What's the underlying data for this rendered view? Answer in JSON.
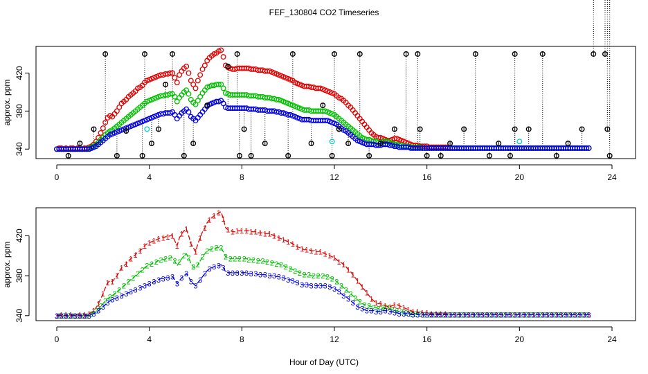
{
  "title": "FEF_130804  CO2 Timeseries",
  "xlabel": "Hour of Day (UTC)",
  "colors": {
    "c1": "#e00000",
    "c2": "#00c000",
    "c3": "#0000e0",
    "outlier": "#000000",
    "cyan": "#00d0d0"
  },
  "chart_data": [
    {
      "type": "scatter",
      "title": "FEF_130804  CO2 Timeseries",
      "ylabel": "approx. ppm",
      "xlim": [
        0,
        24
      ],
      "ylim": [
        330,
        448
      ],
      "xticks": [
        0,
        4,
        8,
        12,
        16,
        20,
        24
      ],
      "yticks": [
        340,
        380,
        420
      ],
      "x": [
        0,
        0.1,
        0.2,
        0.3,
        0.4,
        0.5,
        0.6,
        0.7,
        0.8,
        0.9,
        1,
        1.1,
        1.2,
        1.3,
        1.4,
        1.5,
        1.6,
        1.7,
        1.8,
        1.9,
        2,
        2.1,
        2.2,
        2.3,
        2.4,
        2.5,
        2.6,
        2.7,
        2.8,
        2.9,
        3,
        3.1,
        3.2,
        3.3,
        3.4,
        3.5,
        3.6,
        3.7,
        3.8,
        3.9,
        4,
        4.1,
        4.2,
        4.3,
        4.4,
        4.5,
        4.6,
        4.7,
        4.8,
        4.9,
        5,
        5.1,
        5.2,
        5.3,
        5.4,
        5.5,
        5.6,
        5.7,
        5.8,
        5.9,
        6,
        6.1,
        6.2,
        6.3,
        6.4,
        6.5,
        6.6,
        6.7,
        6.8,
        6.9,
        7,
        7.1,
        7.2,
        7.3,
        7.4,
        7.5,
        7.6,
        7.7,
        7.8,
        7.9,
        8,
        8.1,
        8.2,
        8.3,
        8.4,
        8.5,
        8.6,
        8.7,
        8.8,
        8.9,
        9,
        9.1,
        9.2,
        9.3,
        9.4,
        9.5,
        9.6,
        9.7,
        9.8,
        9.9,
        10,
        10.1,
        10.2,
        10.3,
        10.4,
        10.5,
        10.6,
        10.7,
        10.8,
        10.9,
        11,
        11.1,
        11.2,
        11.3,
        11.4,
        11.5,
        11.6,
        11.7,
        11.8,
        11.9,
        12,
        12.1,
        12.2,
        12.3,
        12.4,
        12.5,
        12.6,
        12.7,
        12.8,
        12.9,
        13,
        13.1,
        13.2,
        13.3,
        13.4,
        13.5,
        13.6,
        13.7,
        13.8,
        13.9,
        14,
        14.1,
        14.2,
        14.3,
        14.4,
        14.5,
        14.6,
        14.7,
        14.8,
        14.9,
        15,
        15.1,
        15.2,
        15.3,
        15.4,
        15.5,
        15.6,
        15.7,
        15.8,
        15.9,
        16,
        16.1,
        16.2,
        16.3,
        16.4,
        16.5,
        16.6,
        16.7,
        16.8,
        16.9,
        17,
        17.1,
        17.2,
        17.3,
        17.4,
        17.5,
        17.6,
        17.7,
        17.8,
        17.9,
        18,
        18.1,
        18.2,
        18.3,
        18.4,
        18.5,
        18.6,
        18.7,
        18.8,
        18.9,
        19,
        19.1,
        19.2,
        19.3,
        19.4,
        19.5,
        19.6,
        19.7,
        19.8,
        19.9,
        20,
        20.1,
        20.2,
        20.3,
        20.4,
        20.5,
        20.6,
        20.7,
        20.8,
        20.9,
        21,
        21.1,
        21.2,
        21.3,
        21.4,
        21.5,
        21.6,
        21.7,
        21.8,
        21.9,
        22,
        22.1,
        22.2,
        22.3,
        22.4,
        22.5,
        22.6,
        22.7,
        22.8,
        22.9,
        23,
        23.1,
        23.2,
        23.3,
        23.4,
        23.5,
        23.6,
        23.7
      ],
      "series": [
        {
          "name": "1",
          "color": "#e00000",
          "values": [
            340,
            341,
            341,
            340,
            341,
            340,
            341,
            341,
            340,
            341,
            341,
            340,
            341,
            341,
            342,
            343,
            345,
            348,
            352,
            357,
            362,
            368,
            373,
            375,
            374,
            377,
            380,
            384,
            388,
            390,
            392,
            395,
            397,
            399,
            401,
            404,
            405,
            407,
            410,
            412,
            413,
            414,
            415,
            416,
            417,
            418,
            418,
            419,
            419,
            420,
            420,
            415,
            410,
            418,
            422,
            425,
            427,
            420,
            412,
            408,
            404,
            412,
            418,
            424,
            428,
            433,
            436,
            438,
            440,
            441,
            443,
            444,
            437,
            428,
            426,
            425,
            424,
            424,
            425,
            425,
            425,
            425,
            425,
            425,
            424,
            424,
            424,
            423,
            423,
            423,
            422,
            422,
            422,
            421,
            420,
            419,
            418,
            417,
            416,
            415,
            414,
            413,
            412,
            410,
            409,
            408,
            407,
            406,
            406,
            406,
            405,
            405,
            404,
            404,
            404,
            403,
            402,
            401,
            400,
            399,
            398,
            396,
            394,
            393,
            391,
            389,
            386,
            384,
            381,
            378,
            375,
            372,
            369,
            366,
            363,
            360,
            357,
            355,
            353,
            352,
            352,
            351,
            350,
            349,
            349,
            350,
            351,
            351,
            350,
            349,
            348,
            347,
            346,
            345,
            344,
            344,
            344,
            343,
            343,
            343,
            343,
            342,
            342,
            342,
            342,
            342,
            342,
            342,
            342,
            342,
            341,
            341,
            341,
            341,
            341,
            341,
            341,
            341,
            341,
            341,
            341,
            341,
            341,
            341,
            341,
            341,
            341,
            341,
            341,
            341,
            341,
            341,
            341,
            341,
            341,
            341,
            341,
            341,
            341,
            341,
            341,
            341,
            341,
            341,
            341,
            341,
            341,
            341,
            341,
            341,
            341,
            341,
            341,
            341,
            341,
            341,
            341,
            341,
            341,
            341,
            341,
            341,
            341,
            341,
            341,
            341,
            341,
            341,
            341,
            341,
            341
          ]
        },
        {
          "name": "2",
          "color": "#00c000",
          "values": [
            340,
            340,
            340,
            340,
            340,
            340,
            340,
            340,
            340,
            340,
            340,
            340,
            340,
            340,
            341,
            342,
            343,
            345,
            347,
            350,
            352,
            355,
            357,
            359,
            360,
            362,
            364,
            366,
            368,
            370,
            372,
            374,
            376,
            378,
            380,
            382,
            384,
            386,
            388,
            390,
            391,
            392,
            393,
            394,
            395,
            396,
            396,
            397,
            397,
            398,
            398,
            395,
            390,
            394,
            397,
            400,
            402,
            398,
            392,
            389,
            387,
            391,
            395,
            399,
            402,
            405,
            406,
            407,
            407,
            408,
            408,
            408,
            404,
            399,
            398,
            397,
            397,
            397,
            397,
            397,
            397,
            397,
            397,
            396,
            396,
            396,
            396,
            395,
            395,
            395,
            394,
            394,
            394,
            393,
            393,
            392,
            392,
            391,
            390,
            389,
            388,
            387,
            386,
            385,
            384,
            383,
            382,
            381,
            381,
            381,
            380,
            380,
            380,
            380,
            380,
            380,
            380,
            379,
            378,
            377,
            376,
            374,
            372,
            370,
            368,
            366,
            364,
            362,
            360,
            358,
            356,
            354,
            352,
            351,
            350,
            350,
            349,
            348,
            348,
            347,
            347,
            348,
            348,
            348,
            347,
            346,
            345,
            345,
            344,
            344,
            343,
            343,
            343,
            342,
            342,
            342,
            342,
            342,
            341,
            341,
            341,
            341,
            341,
            341,
            341,
            341,
            341,
            341,
            341,
            341,
            341,
            341,
            341,
            341,
            341,
            341,
            341,
            341,
            341,
            341,
            341,
            341,
            341,
            341,
            341,
            341,
            341,
            341,
            341,
            341,
            341,
            341,
            341,
            341,
            341,
            341,
            341,
            341,
            341,
            341,
            341,
            341,
            341,
            341,
            341,
            341,
            341,
            341,
            341,
            341,
            341,
            341,
            341,
            341,
            341,
            341,
            341,
            341,
            341,
            341,
            341,
            341,
            341,
            341,
            341,
            341,
            341,
            341,
            341,
            341,
            341
          ]
        },
        {
          "name": "3",
          "color": "#0000e0",
          "values": [
            340,
            340,
            340,
            340,
            340,
            340,
            340,
            340,
            340,
            340,
            340,
            340,
            340,
            340,
            340,
            341,
            342,
            343,
            345,
            347,
            349,
            351,
            353,
            355,
            356,
            357,
            358,
            359,
            360,
            361,
            362,
            363,
            364,
            365,
            366,
            367,
            368,
            369,
            370,
            371,
            372,
            373,
            374,
            375,
            376,
            377,
            377,
            378,
            378,
            378,
            379,
            376,
            372,
            375,
            378,
            380,
            382,
            379,
            374,
            372,
            370,
            373,
            376,
            379,
            382,
            385,
            387,
            388,
            389,
            390,
            390,
            391,
            388,
            384,
            383,
            383,
            383,
            383,
            383,
            383,
            383,
            383,
            383,
            382,
            382,
            382,
            382,
            381,
            381,
            381,
            381,
            380,
            380,
            380,
            380,
            379,
            379,
            378,
            378,
            377,
            376,
            376,
            375,
            374,
            373,
            372,
            371,
            371,
            371,
            371,
            370,
            370,
            370,
            370,
            370,
            370,
            370,
            370,
            369,
            368,
            367,
            366,
            364,
            362,
            360,
            359,
            357,
            355,
            353,
            351,
            349,
            348,
            347,
            346,
            345,
            345,
            345,
            345,
            344,
            344,
            344,
            345,
            345,
            345,
            344,
            344,
            343,
            343,
            342,
            342,
            342,
            342,
            342,
            341,
            341,
            341,
            341,
            341,
            341,
            341,
            341,
            341,
            341,
            341,
            341,
            341,
            341,
            341,
            341,
            341,
            341,
            341,
            341,
            341,
            341,
            341,
            341,
            341,
            341,
            341,
            341,
            341,
            341,
            341,
            341,
            341,
            341,
            341,
            341,
            341,
            341,
            341,
            341,
            341,
            341,
            341,
            341,
            341,
            341,
            341,
            341,
            341,
            341,
            341,
            341,
            341,
            341,
            341,
            341,
            341,
            341,
            341,
            341,
            341,
            341,
            341,
            341,
            341,
            341,
            341,
            341,
            341,
            341,
            341,
            341,
            341,
            341,
            341,
            341,
            341,
            341
          ]
        }
      ],
      "outlier_points": [
        {
          "x": 0.5,
          "y": 333
        },
        {
          "x": 1.0,
          "y": 346
        },
        {
          "x": 1.6,
          "y": 361
        },
        {
          "x": 2.1,
          "y": 440
        },
        {
          "x": 2.6,
          "y": 333
        },
        {
          "x": 3.0,
          "y": 359
        },
        {
          "x": 3.7,
          "y": 333
        },
        {
          "x": 3.8,
          "y": 440
        },
        {
          "x": 4.1,
          "y": 346
        },
        {
          "x": 4.4,
          "y": 361
        },
        {
          "x": 4.7,
          "y": 408
        },
        {
          "x": 5.0,
          "y": 440
        },
        {
          "x": 5.5,
          "y": 333
        },
        {
          "x": 5.9,
          "y": 346
        },
        {
          "x": 6.5,
          "y": 386
        },
        {
          "x": 7.4,
          "y": 427
        },
        {
          "x": 7.8,
          "y": 440
        },
        {
          "x": 7.9,
          "y": 333
        },
        {
          "x": 8.1,
          "y": 361
        },
        {
          "x": 8.4,
          "y": 333
        },
        {
          "x": 9.0,
          "y": 346
        },
        {
          "x": 10.0,
          "y": 333
        },
        {
          "x": 10.2,
          "y": 440
        },
        {
          "x": 11.0,
          "y": 346
        },
        {
          "x": 11.5,
          "y": 386
        },
        {
          "x": 11.9,
          "y": 333
        },
        {
          "x": 12.0,
          "y": 440
        },
        {
          "x": 12.2,
          "y": 361
        },
        {
          "x": 12.6,
          "y": 346
        },
        {
          "x": 13.1,
          "y": 440
        },
        {
          "x": 13.5,
          "y": 333
        },
        {
          "x": 14.0,
          "y": 346
        },
        {
          "x": 14.6,
          "y": 361
        },
        {
          "x": 15.1,
          "y": 440
        },
        {
          "x": 15.6,
          "y": 440
        },
        {
          "x": 15.7,
          "y": 361
        },
        {
          "x": 16.0,
          "y": 333
        },
        {
          "x": 16.6,
          "y": 333
        },
        {
          "x": 17.0,
          "y": 346
        },
        {
          "x": 17.6,
          "y": 361
        },
        {
          "x": 18.1,
          "y": 440
        },
        {
          "x": 18.7,
          "y": 333
        },
        {
          "x": 19.1,
          "y": 346
        },
        {
          "x": 19.6,
          "y": 333
        },
        {
          "x": 19.8,
          "y": 361
        },
        {
          "x": 19.8,
          "y": 440
        },
        {
          "x": 20.4,
          "y": 361
        },
        {
          "x": 21.0,
          "y": 440
        },
        {
          "x": 21.6,
          "y": 333
        },
        {
          "x": 22.1,
          "y": 346
        },
        {
          "x": 22.7,
          "y": 361
        },
        {
          "x": 23.2,
          "y": 440
        },
        {
          "x": 23.7,
          "y": 440
        },
        {
          "x": 23.8,
          "y": 361
        },
        {
          "x": 23.9,
          "y": 333
        }
      ],
      "cyan_points": [
        {
          "x": 11.9,
          "y": 348
        },
        {
          "x": 20.0,
          "y": 348
        },
        {
          "x": 3.9,
          "y": 361
        }
      ]
    },
    {
      "type": "line",
      "ylabel": "approx. ppm",
      "xlim": [
        0,
        24
      ],
      "ylim": [
        335,
        448
      ],
      "xticks": [
        0,
        4,
        8,
        12,
        16,
        20,
        24
      ],
      "yticks": [
        340,
        380,
        420
      ],
      "gap_x": [
        15.8,
        19.8
      ],
      "marker_labels": [
        "1",
        "2",
        "3"
      ]
    }
  ]
}
